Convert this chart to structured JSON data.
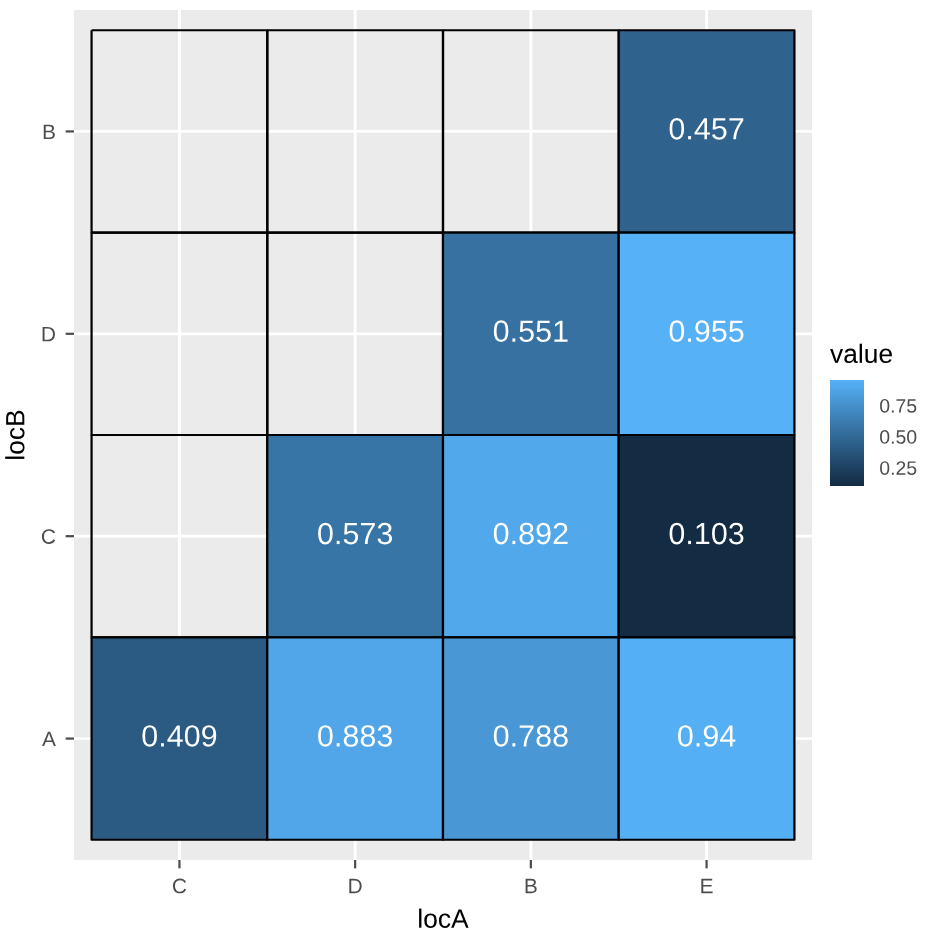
{
  "chart_data": {
    "type": "heatmap",
    "xlabel": "locA",
    "ylabel": "locB",
    "clabel": "value",
    "categories": [
      "C",
      "D",
      "B",
      "E"
    ],
    "y_categories": [
      "B",
      "D",
      "C",
      "A"
    ],
    "cells": [
      [
        null,
        null,
        null,
        0.457
      ],
      [
        null,
        null,
        0.551,
        0.955
      ],
      [
        null,
        0.573,
        0.892,
        0.103
      ],
      [
        0.409,
        0.883,
        0.788,
        0.94
      ]
    ],
    "clim": [
      0.103,
      0.955
    ],
    "cticks": [
      {
        "value": 0.25,
        "label": "0.25"
      },
      {
        "value": 0.5,
        "label": "0.50"
      },
      {
        "value": 0.75,
        "label": "0.75"
      }
    ],
    "colors": [
      "#132b43",
      "#56b1f7"
    ],
    "grid": true,
    "data_labels": true
  }
}
